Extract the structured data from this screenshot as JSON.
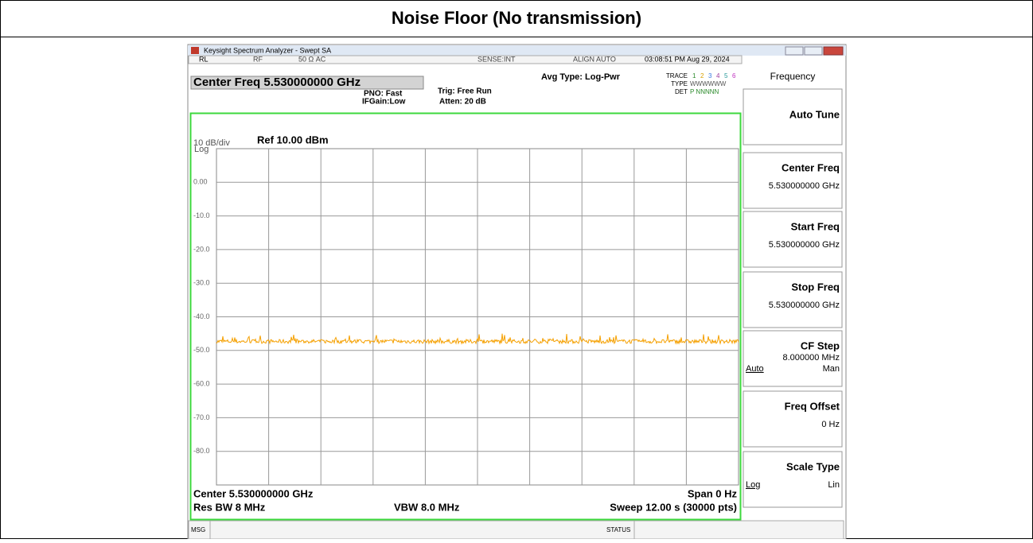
{
  "header": {
    "title": "Noise Floor (No transmission)"
  },
  "window": {
    "title": "Keysight Spectrum Analyzer - Swept SA"
  },
  "status_bar": {
    "rl": "RL",
    "rf": "RF",
    "impedance": "50 Ω  AC",
    "sense": "SENSE:INT",
    "align": "ALIGN AUTO",
    "datetime": "03:08:51 PM Aug 29, 2024"
  },
  "settings": {
    "center_freq": "Center Freq 5.530000000 GHz",
    "pno": "PNO: Fast",
    "ifgain": "IFGain:Low",
    "trig": "Trig: Free Run",
    "atten": "Atten: 20 dB",
    "avg_type": "Avg Type: Log-Pwr",
    "trace": {
      "label": "TRACE",
      "values": [
        "1",
        "2",
        "3",
        "4",
        "5",
        "6"
      ]
    },
    "type": {
      "label": "TYPE",
      "value": "WWWWWW"
    },
    "det": {
      "label": "DET",
      "value": "P NNNNN"
    }
  },
  "plot": {
    "scale": "10 dB/div",
    "ref": "Ref 10.00 dBm",
    "log": "Log",
    "y_labels": [
      "0.00",
      "-10.0",
      "-20.0",
      "-30.0",
      "-40.0",
      "-50.0",
      "-60.0",
      "-70.0",
      "-80.0"
    ],
    "center": "Center 5.530000000 GHz",
    "span": "Span 0 Hz",
    "res_bw": "Res BW 8 MHz",
    "vbw": "VBW 8.0 MHz",
    "sweep": "Sweep  12.00 s (30000 pts)"
  },
  "footer": {
    "msg": "MSG",
    "status": "STATUS"
  },
  "softkeys": {
    "menu": "Frequency",
    "keys": [
      {
        "label": "Auto Tune"
      },
      {
        "label": "Center Freq",
        "value": "5.530000000 GHz"
      },
      {
        "label": "Start Freq",
        "value": "5.530000000 GHz"
      },
      {
        "label": "Stop Freq",
        "value": "5.530000000 GHz"
      },
      {
        "label": "CF Step",
        "value": "8.000000 MHz",
        "left": "Auto",
        "right": "Man"
      },
      {
        "label": "Freq Offset",
        "value": "0 Hz"
      },
      {
        "label": "Scale Type",
        "left": "Log",
        "right": "Lin"
      }
    ]
  }
}
